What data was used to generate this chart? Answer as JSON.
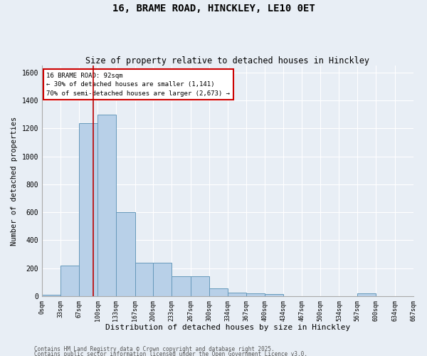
{
  "title1": "16, BRAME ROAD, HINCKLEY, LE10 0ET",
  "title2": "Size of property relative to detached houses in Hinckley",
  "xlabel": "Distribution of detached houses by size in Hinckley",
  "ylabel": "Number of detached properties",
  "bin_edges": [
    0,
    33,
    67,
    100,
    133,
    167,
    200,
    233,
    267,
    300,
    334,
    367,
    400,
    434,
    467,
    500,
    534,
    567,
    600,
    634,
    667
  ],
  "bar_heights": [
    10,
    220,
    1240,
    1300,
    600,
    240,
    240,
    140,
    140,
    55,
    25,
    20,
    15,
    0,
    0,
    0,
    0,
    20,
    0,
    0
  ],
  "bar_color": "#b8d0e8",
  "bar_edge_color": "#6699bb",
  "property_size": 92,
  "red_line_color": "#bb0000",
  "annotation_text": "16 BRAME ROAD: 92sqm\n← 30% of detached houses are smaller (1,141)\n70% of semi-detached houses are larger (2,673) →",
  "annotation_box_color": "#cc0000",
  "ylim": [
    0,
    1650
  ],
  "background_color": "#e8eef5",
  "grid_color": "#ffffff",
  "footer1": "Contains HM Land Registry data © Crown copyright and database right 2025.",
  "footer2": "Contains public sector information licensed under the Open Government Licence v3.0.",
  "title1_fontsize": 10,
  "title2_fontsize": 8.5,
  "ylabel_fontsize": 7.5,
  "xlabel_fontsize": 8,
  "tick_fontsize": 6,
  "annot_fontsize": 6.5,
  "footer_fontsize": 5.5
}
